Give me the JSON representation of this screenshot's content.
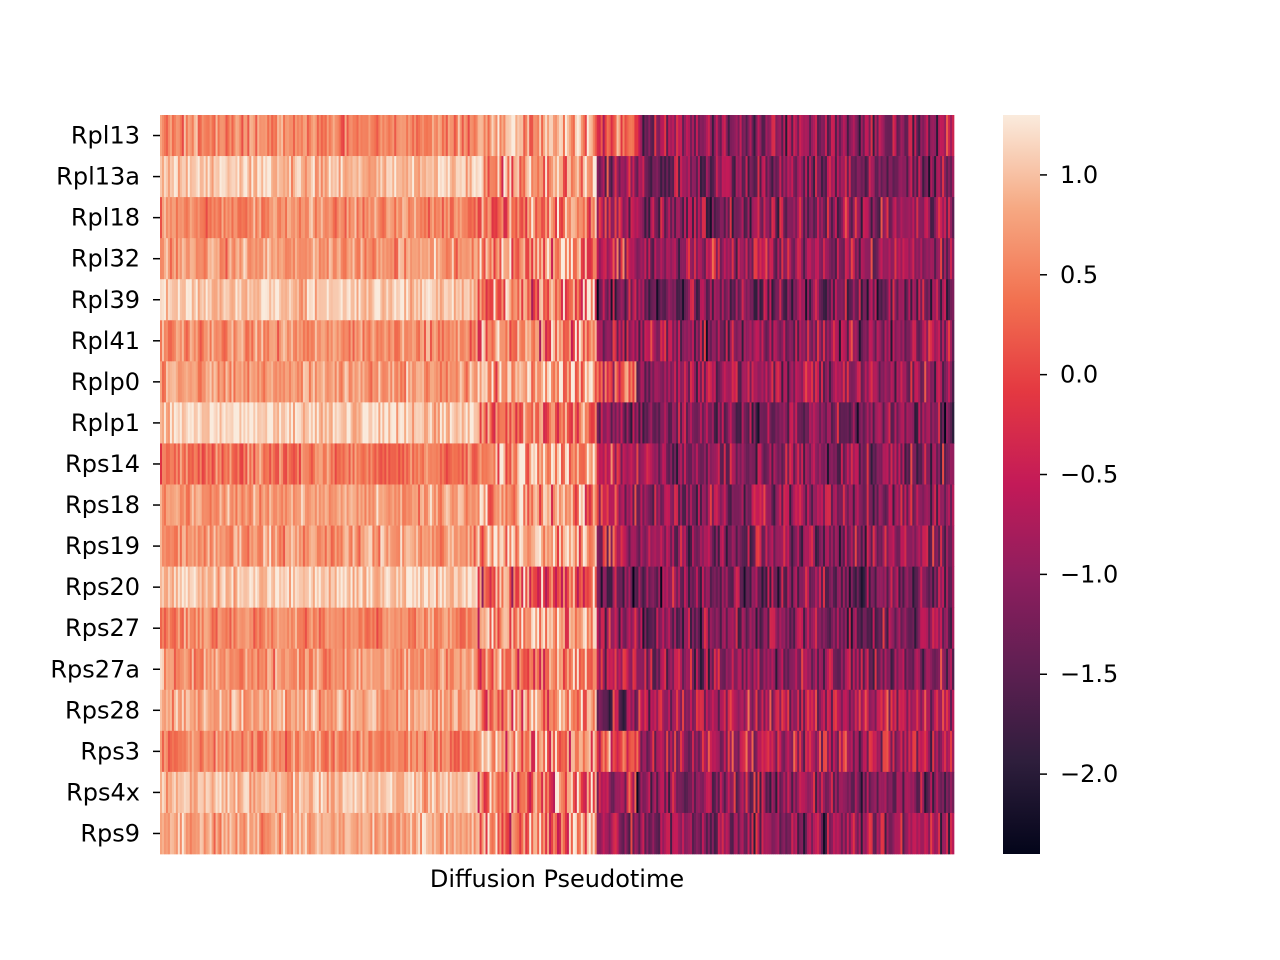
{
  "chart_data": {
    "type": "heatmap",
    "title": "",
    "xlabel": "Diffusion Pseudotime",
    "ylabel": "",
    "rows": [
      "Rpl13",
      "Rpl13a",
      "Rpl18",
      "Rpl32",
      "Rpl39",
      "Rpl41",
      "Rplp0",
      "Rplp1",
      "Rps14",
      "Rps18",
      "Rps19",
      "Rps20",
      "Rps27",
      "Rps27a",
      "Rps28",
      "Rps3",
      "Rps4x",
      "Rps9"
    ],
    "x_ticks": "none",
    "value_range": [
      -2.4,
      1.3
    ],
    "colormap": "rocket",
    "colorbar": {
      "ticks": [
        -2.0,
        -1.5,
        -1.0,
        -0.5,
        0.0,
        0.5,
        1.0
      ],
      "tick_labels": [
        "−2.0",
        "−1.5",
        "−1.0",
        "−0.5",
        "0.0",
        "0.5",
        "1.0"
      ]
    },
    "n_columns": 400,
    "row_profiles": [
      {
        "name": "Rpl13",
        "segments": [
          [
            0,
            0.4,
            0.55
          ],
          [
            0.4,
            0.55,
            0.85
          ],
          [
            0.55,
            0.6,
            0.2
          ],
          [
            0.6,
            1.0,
            -1.0
          ]
        ]
      },
      {
        "name": "Rpl13a",
        "segments": [
          [
            0,
            0.4,
            1.0
          ],
          [
            0.4,
            0.55,
            0.7
          ],
          [
            0.55,
            0.6,
            -0.8
          ],
          [
            0.6,
            1.0,
            -1.1
          ]
        ]
      },
      {
        "name": "Rpl18",
        "segments": [
          [
            0,
            0.4,
            0.6
          ],
          [
            0.4,
            0.55,
            0.5
          ],
          [
            0.55,
            0.6,
            -0.6
          ],
          [
            0.6,
            1.0,
            -1.0
          ]
        ]
      },
      {
        "name": "Rpl32",
        "segments": [
          [
            0,
            0.4,
            0.7
          ],
          [
            0.4,
            0.55,
            0.6
          ],
          [
            0.55,
            0.6,
            -0.4
          ],
          [
            0.6,
            1.0,
            -0.9
          ]
        ]
      },
      {
        "name": "Rpl39",
        "segments": [
          [
            0,
            0.4,
            1.05
          ],
          [
            0.4,
            0.55,
            0.4
          ],
          [
            0.55,
            0.6,
            -1.2
          ],
          [
            0.6,
            1.0,
            -1.2
          ]
        ]
      },
      {
        "name": "Rpl41",
        "segments": [
          [
            0,
            0.4,
            0.6
          ],
          [
            0.4,
            0.55,
            0.45
          ],
          [
            0.55,
            0.6,
            -0.6
          ],
          [
            0.6,
            1.0,
            -1.0
          ]
        ]
      },
      {
        "name": "Rplp0",
        "segments": [
          [
            0,
            0.4,
            0.7
          ],
          [
            0.4,
            0.55,
            0.8
          ],
          [
            0.55,
            0.6,
            0.0
          ],
          [
            0.6,
            1.0,
            -0.9
          ]
        ]
      },
      {
        "name": "Rplp1",
        "segments": [
          [
            0,
            0.4,
            1.15
          ],
          [
            0.4,
            0.55,
            0.2
          ],
          [
            0.55,
            0.6,
            -1.2
          ],
          [
            0.6,
            1.0,
            -1.2
          ]
        ]
      },
      {
        "name": "Rps14",
        "segments": [
          [
            0,
            0.4,
            0.4
          ],
          [
            0.4,
            0.55,
            0.8
          ],
          [
            0.55,
            0.6,
            -0.4
          ],
          [
            0.6,
            1.0,
            -1.1
          ]
        ]
      },
      {
        "name": "Rps18",
        "segments": [
          [
            0,
            0.4,
            0.75
          ],
          [
            0.4,
            0.55,
            0.6
          ],
          [
            0.55,
            0.6,
            -0.6
          ],
          [
            0.6,
            1.0,
            -1.0
          ]
        ]
      },
      {
        "name": "Rps19",
        "segments": [
          [
            0,
            0.4,
            0.7
          ],
          [
            0.4,
            0.55,
            0.9
          ],
          [
            0.55,
            0.6,
            -0.5
          ],
          [
            0.6,
            1.0,
            -1.0
          ]
        ]
      },
      {
        "name": "Rps20",
        "segments": [
          [
            0,
            0.4,
            1.1
          ],
          [
            0.4,
            0.55,
            0.1
          ],
          [
            0.55,
            0.6,
            -1.2
          ],
          [
            0.6,
            1.0,
            -1.2
          ]
        ]
      },
      {
        "name": "Rps27",
        "segments": [
          [
            0,
            0.4,
            0.6
          ],
          [
            0.4,
            0.55,
            0.75
          ],
          [
            0.55,
            0.6,
            -0.8
          ],
          [
            0.6,
            1.0,
            -1.1
          ]
        ]
      },
      {
        "name": "Rps27a",
        "segments": [
          [
            0,
            0.4,
            0.65
          ],
          [
            0.4,
            0.55,
            0.45
          ],
          [
            0.55,
            0.6,
            -0.6
          ],
          [
            0.6,
            1.0,
            -1.0
          ]
        ]
      },
      {
        "name": "Rps28",
        "segments": [
          [
            0,
            0.4,
            0.8
          ],
          [
            0.4,
            0.55,
            0.6
          ],
          [
            0.55,
            0.6,
            -1.0
          ],
          [
            0.6,
            1.0,
            -0.7
          ]
        ]
      },
      {
        "name": "Rps3",
        "segments": [
          [
            0,
            0.4,
            0.55
          ],
          [
            0.4,
            0.55,
            0.6
          ],
          [
            0.55,
            0.6,
            0.1
          ],
          [
            0.6,
            1.0,
            -0.7
          ]
        ]
      },
      {
        "name": "Rps4x",
        "segments": [
          [
            0,
            0.4,
            0.95
          ],
          [
            0.4,
            0.55,
            0.3
          ],
          [
            0.55,
            0.6,
            -0.8
          ],
          [
            0.6,
            1.0,
            -1.1
          ]
        ]
      },
      {
        "name": "Rps9",
        "segments": [
          [
            0,
            0.4,
            0.8
          ],
          [
            0.4,
            0.55,
            0.5
          ],
          [
            0.55,
            0.6,
            -0.7
          ],
          [
            0.6,
            1.0,
            -1.0
          ]
        ]
      }
    ]
  }
}
